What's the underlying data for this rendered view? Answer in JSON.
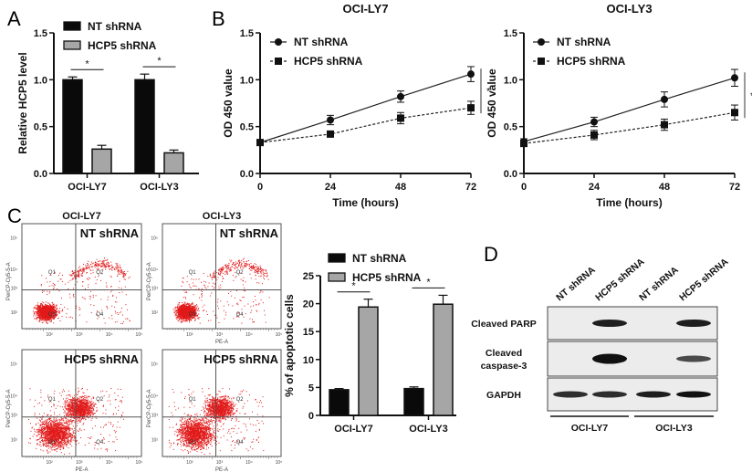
{
  "figure": {
    "panel_letters": [
      "A",
      "B",
      "C",
      "D"
    ],
    "colors": {
      "nt": "#0a0a0a",
      "hcp5": "#a6a6a6",
      "flow_dots": "#e11a1a",
      "blot_bg": "#ececec"
    }
  },
  "chart_data": [
    {
      "id": "A",
      "type": "bar",
      "title": "",
      "xlabel": "",
      "ylabel": "Relative HCP5 level",
      "ylim": [
        0,
        1.5
      ],
      "yticks": [
        "0.0",
        "0.5",
        "1.0",
        "1.5"
      ],
      "categories": [
        "OCI-LY7",
        "OCI-LY3"
      ],
      "legend": {
        "placement": "top",
        "entries": [
          "NT shRNA",
          "HCP5 shRNA"
        ]
      },
      "series": [
        {
          "name": "NT shRNA",
          "values": [
            1.0,
            1.0
          ],
          "errors": [
            0.03,
            0.06
          ]
        },
        {
          "name": "HCP5 shRNA",
          "values": [
            0.26,
            0.22
          ],
          "errors": [
            0.04,
            0.03
          ]
        }
      ],
      "annotations": [
        "*",
        "*"
      ]
    },
    {
      "id": "B1",
      "type": "line",
      "title": "OCI-LY7",
      "xlabel": "Time (hours)",
      "ylabel": "OD 450 value",
      "x": [
        0,
        24,
        48,
        72
      ],
      "xticks": [
        "0",
        "24",
        "48",
        "72"
      ],
      "ylim": [
        0,
        1.5
      ],
      "yticks": [
        "0.0",
        "0.5",
        "1.0",
        "1.5"
      ],
      "legend": {
        "placement": "top-left",
        "entries": [
          "NT shRNA",
          "HCP5 shRNA"
        ]
      },
      "series": [
        {
          "name": "NT shRNA",
          "marker": "circle",
          "line": "solid",
          "values": [
            0.33,
            0.57,
            0.82,
            1.06
          ],
          "errors": [
            0.03,
            0.05,
            0.06,
            0.08
          ]
        },
        {
          "name": "HCP5 shRNA",
          "marker": "square",
          "line": "dotted",
          "values": [
            0.33,
            0.42,
            0.59,
            0.7
          ],
          "errors": [
            0.03,
            0.03,
            0.06,
            0.07
          ]
        }
      ],
      "annotations": [
        "*"
      ]
    },
    {
      "id": "B2",
      "type": "line",
      "title": "OCI-LY3",
      "xlabel": "Time (hours)",
      "ylabel": "OD 450 value",
      "x": [
        0,
        24,
        48,
        72
      ],
      "xticks": [
        "0",
        "24",
        "48",
        "72"
      ],
      "ylim": [
        0,
        1.5
      ],
      "yticks": [
        "0.0",
        "0.5",
        "1.0",
        "1.5"
      ],
      "legend": {
        "placement": "top-left",
        "entries": [
          "NT shRNA",
          "HCP5 shRNA"
        ]
      },
      "series": [
        {
          "name": "NT shRNA",
          "marker": "circle",
          "line": "solid",
          "values": [
            0.34,
            0.55,
            0.79,
            1.02
          ],
          "errors": [
            0.03,
            0.05,
            0.08,
            0.09
          ]
        },
        {
          "name": "HCP5 shRNA",
          "marker": "square",
          "line": "dotted",
          "values": [
            0.32,
            0.41,
            0.52,
            0.65
          ],
          "errors": [
            0.03,
            0.05,
            0.06,
            0.08
          ]
        }
      ],
      "annotations": [
        "*"
      ]
    },
    {
      "id": "C-bar",
      "type": "bar",
      "title": "",
      "xlabel": "",
      "ylabel": "% of apoptotic cells",
      "ylim": [
        0,
        25
      ],
      "yticks": [
        "0",
        "5",
        "10",
        "15",
        "20",
        "25"
      ],
      "categories": [
        "OCI-LY7",
        "OCI-LY3"
      ],
      "legend": {
        "placement": "top",
        "entries": [
          "NT shRNA",
          "HCP5 shRNA"
        ]
      },
      "series": [
        {
          "name": "NT shRNA",
          "values": [
            4.6,
            4.8
          ],
          "errors": [
            0.2,
            0.3
          ]
        },
        {
          "name": "HCP5 shRNA",
          "values": [
            19.4,
            19.9
          ],
          "errors": [
            1.4,
            1.6
          ]
        }
      ],
      "annotations": [
        "*",
        "*"
      ]
    }
  ],
  "flow": {
    "column_titles": [
      "OCI-LY7",
      "OCI-LY3"
    ],
    "row_labels": [
      "NT shRNA",
      "HCP5 shRNA"
    ],
    "x_axis_label": "PE-A",
    "y_axis_label": "PerCP-Cy5-5-A",
    "quadrants": [
      "Q1",
      "Q2",
      "Q3",
      "Q4"
    ],
    "tick_labels": [
      "10²",
      "10³",
      "10⁴",
      "10⁵"
    ]
  },
  "western": {
    "lanes": [
      "NT shRNA",
      "HCP5 shRNA",
      "NT shRNA",
      "HCP5 shRNA"
    ],
    "rows": [
      "Cleaved PARP",
      "Cleaved caspase-3",
      "GAPDH"
    ],
    "row_label_lines": [
      [
        "Cleaved PARP"
      ],
      [
        "Cleaved",
        "caspase-3"
      ],
      [
        "GAPDH"
      ]
    ],
    "groups": [
      "OCI-LY7",
      "OCI-LY3"
    ],
    "band_intensity": [
      [
        0,
        0.9,
        0,
        0.9
      ],
      [
        0,
        1.0,
        0,
        0.6
      ],
      [
        0.8,
        0.8,
        0.9,
        1.0
      ]
    ]
  }
}
